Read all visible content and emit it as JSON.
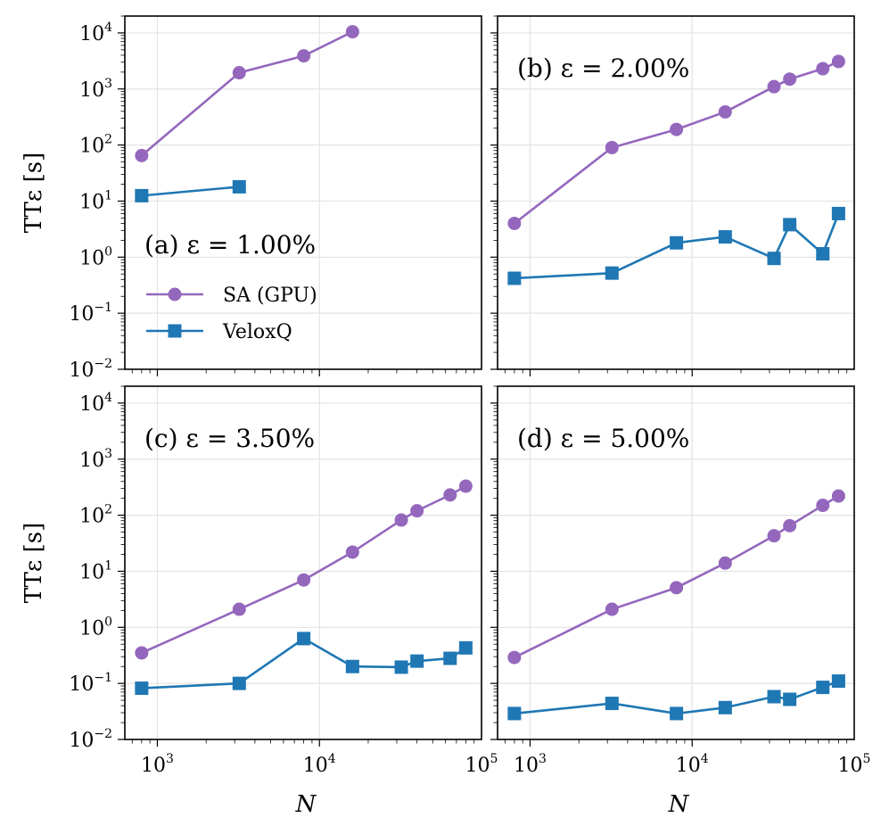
{
  "chart_data": {
    "type": "line",
    "xlabel": "N",
    "ylabel": "TTε [s]",
    "xscale": "log",
    "yscale": "log",
    "xlim": [
      630,
      100000
    ],
    "ylim": [
      0.01,
      20000
    ],
    "xticks": [
      {
        "base": "10",
        "exp": "3"
      },
      {
        "base": "10",
        "exp": "4"
      },
      {
        "base": "10",
        "exp": "5"
      }
    ],
    "yticks": [
      {
        "base": "10",
        "exp": "−2"
      },
      {
        "base": "10",
        "exp": "−1"
      },
      {
        "base": "10",
        "exp": "0"
      },
      {
        "base": "10",
        "exp": "1"
      },
      {
        "base": "10",
        "exp": "2"
      },
      {
        "base": "10",
        "exp": "3"
      },
      {
        "base": "10",
        "exp": "4"
      }
    ],
    "legend": {
      "location": "lower-left of panel (a)",
      "entries": [
        "SA (GPU)",
        "VeloxQ"
      ]
    },
    "colors": {
      "sa": "#9467bd",
      "veloxq": "#1f77b4"
    },
    "panels": [
      {
        "label": "(a) ε = 1.00%",
        "series": [
          {
            "name": "SA (GPU)",
            "marker": "circle",
            "x": [
              800,
              3200,
              8000,
              16000
            ],
            "y": [
              65,
              1950,
              3900,
              10500
            ]
          },
          {
            "name": "VeloxQ",
            "marker": "square",
            "x": [
              800,
              3200
            ],
            "y": [
              12.5,
              18
            ]
          }
        ]
      },
      {
        "label": "(b) ε = 2.00%",
        "series": [
          {
            "name": "SA (GPU)",
            "marker": "circle",
            "x": [
              800,
              3200,
              8000,
              16000,
              32000,
              40000,
              64000,
              80000
            ],
            "y": [
              4,
              90,
              190,
              390,
              1100,
              1500,
              2300,
              3100
            ]
          },
          {
            "name": "VeloxQ",
            "marker": "square",
            "x": [
              800,
              3200,
              8000,
              16000,
              32000,
              40000,
              64000,
              80000
            ],
            "y": [
              0.42,
              0.52,
              1.8,
              2.3,
              0.95,
              3.8,
              1.15,
              6
            ]
          }
        ]
      },
      {
        "label": "(c) ε = 3.50%",
        "series": [
          {
            "name": "SA (GPU)",
            "marker": "circle",
            "x": [
              800,
              3200,
              8000,
              16000,
              32000,
              40000,
              64000,
              80000
            ],
            "y": [
              0.35,
              2.1,
              7,
              22,
              82,
              120,
              230,
              330
            ]
          },
          {
            "name": "VeloxQ",
            "marker": "square",
            "x": [
              800,
              3200,
              8000,
              16000,
              32000,
              40000,
              64000,
              80000
            ],
            "y": [
              0.082,
              0.1,
              0.63,
              0.2,
              0.195,
              0.25,
              0.28,
              0.43
            ]
          }
        ]
      },
      {
        "label": "(d) ε = 5.00%",
        "series": [
          {
            "name": "SA (GPU)",
            "marker": "circle",
            "x": [
              800,
              3200,
              8000,
              16000,
              32000,
              40000,
              64000,
              80000
            ],
            "y": [
              0.29,
              2.1,
              5.1,
              14,
              43,
              65,
              150,
              220
            ]
          },
          {
            "name": "VeloxQ",
            "marker": "square",
            "x": [
              800,
              3200,
              8000,
              16000,
              32000,
              40000,
              64000,
              80000
            ],
            "y": [
              0.029,
              0.044,
              0.029,
              0.037,
              0.058,
              0.052,
              0.085,
              0.11
            ]
          }
        ]
      }
    ]
  }
}
